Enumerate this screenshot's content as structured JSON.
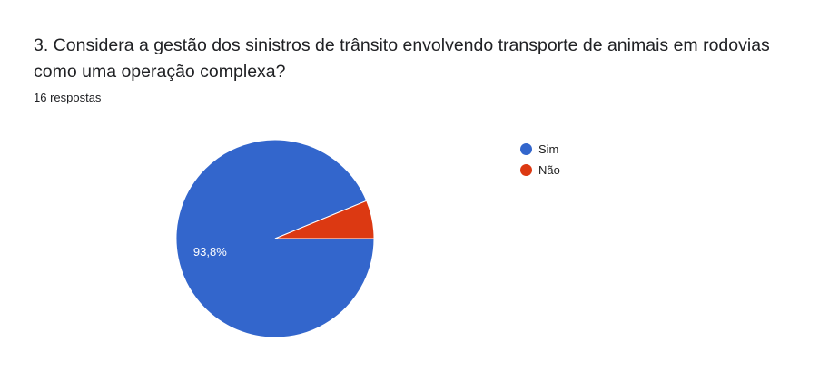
{
  "question": {
    "title": "3. Considera a gestão dos sinistros de trânsito envolvendo transporte de animais em rodovias como uma operação complexa?",
    "responses": "16 respostas"
  },
  "chart_data": {
    "type": "pie",
    "title": "3. Considera a gestão dos sinistros de trânsito envolvendo transporte de animais em rodovias como uma operação complexa?",
    "slices": [
      {
        "label": "Sim",
        "value": 15,
        "percent_label": "93,8%",
        "color": "#3366cc"
      },
      {
        "label": "Não",
        "value": 1,
        "percent_label": "",
        "color": "#dc3912"
      }
    ],
    "legend_position": "right"
  }
}
